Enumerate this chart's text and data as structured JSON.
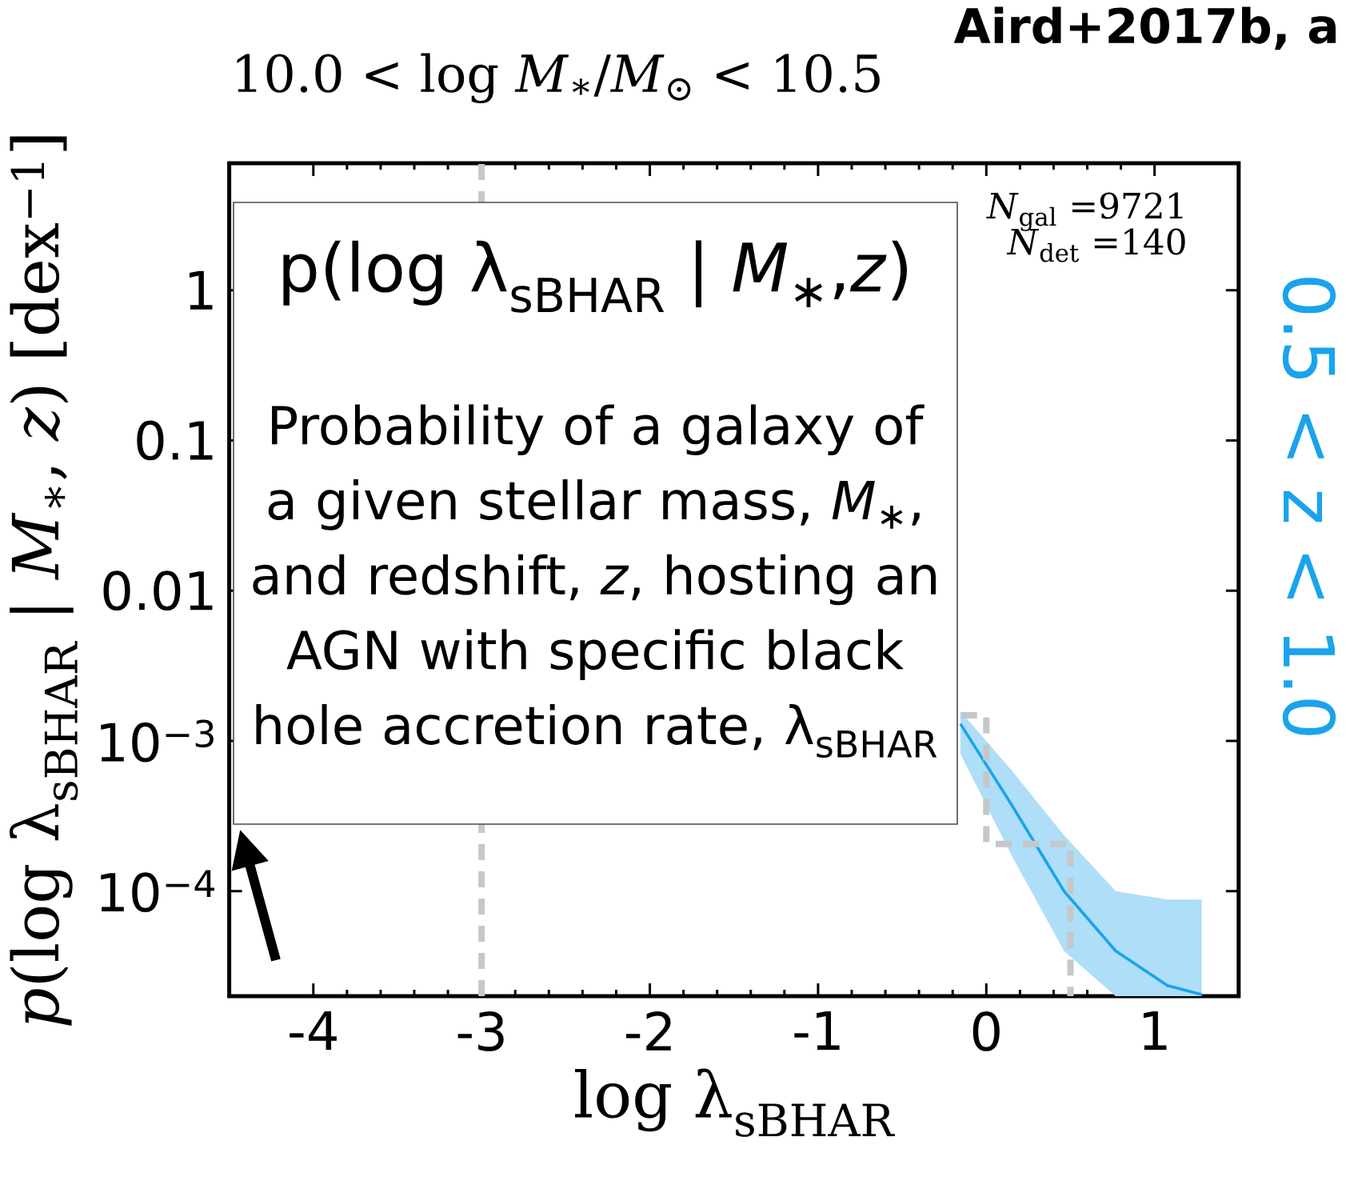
{
  "chart_data": {
    "type": "line",
    "title": "10.0 < log *M*$_{∗}$/*M*$_{⊙}$ < 10.5",
    "xlabel": "log λ$_{sBHAR}$",
    "ylabel": "*p*(log λ$_{sBHAR}$ | *M*$_{∗}$, *z*) [dex$^{−1}$]",
    "log": "y",
    "xlim": [
      -4.5,
      1.5
    ],
    "xticks": [
      -4,
      -3,
      -2,
      -1,
      0,
      1
    ],
    "ylim": [
      2e-05,
      7
    ],
    "yticks": [
      {
        "value": 1,
        "label": "1"
      },
      {
        "value": 0.1,
        "label": "0.1"
      },
      {
        "value": 0.01,
        "label": "0.01"
      },
      {
        "value": 0.001,
        "label": "10$^{−3}$"
      },
      {
        "value": 0.0001,
        "label": "10$^{−4}$"
      }
    ],
    "series": [
      {
        "color": "#1aa3ec",
        "x": [
          -0.154,
          0.154,
          0.462,
          0.769,
          1.077,
          1.28
        ],
        "values": [
          0.0013,
          0.00037,
          0.0001,
          4e-05,
          2.35e-05,
          2.05e-05
        ],
        "lower": [
          0.00082,
          0.00017,
          4e-05,
          2e-05,
          2e-05,
          2e-05
        ],
        "upper": [
          0.00158,
          0.00063,
          0.000235,
          0.0001,
          8.8e-05,
          8.8e-05
        ]
      },
      {
        "type": "step",
        "color": "#c4c8c8",
        "line_style": "dashed",
        "x": [
          -0.15,
          0,
          0.5
        ],
        "values": [
          0.00148,
          0.000206,
          2e-05
        ]
      }
    ],
    "ref_lines": [
      {
        "axis": "x",
        "value": -3,
        "color": "#c4c8c8",
        "line_style": "dashed"
      }
    ],
    "annotations": [
      "Aird+2017b, a",
      "*N*$_{gal}$ =9721",
      "*N*$_{det}$ =140",
      "0.5 < z < 1.0",
      "p(log λ$_{sBHAR}$ | *M*$_{∗}$,*z*)",
      "Probability of a galaxy of a given stellar mass, *M*$_{∗}$, and redshift, *z*, hosting an AGN with specific black hole accretion rate, λ$_{sBHAR}$"
    ]
  }
}
